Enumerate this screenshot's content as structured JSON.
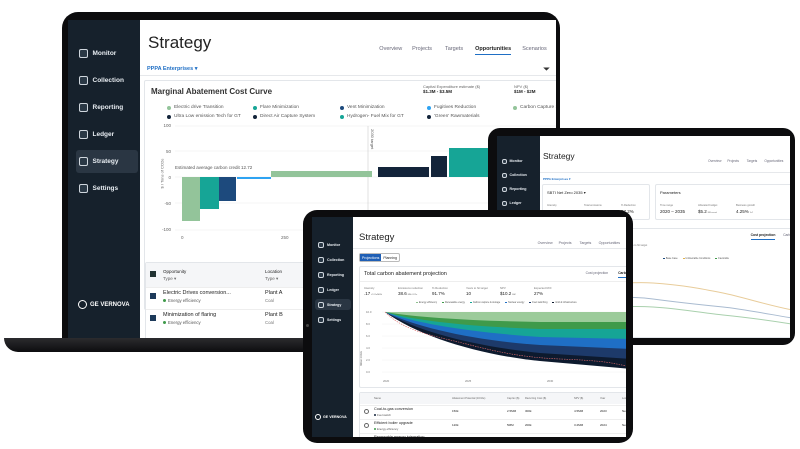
{
  "laptop": {
    "nav": [
      {
        "label": "Monitor",
        "icon": "monitor-icon"
      },
      {
        "label": "Collection",
        "icon": "collection-icon"
      },
      {
        "label": "Reporting",
        "icon": "reporting-icon"
      },
      {
        "label": "Ledger",
        "icon": "ledger-icon"
      },
      {
        "label": "Strategy",
        "icon": "strategy-icon",
        "active": true
      },
      {
        "label": "Settings",
        "icon": "gear-icon"
      }
    ],
    "logo": "GE VERNOVA",
    "title": "Strategy",
    "tabs": [
      "Overview",
      "Projects",
      "Targets",
      "Opportunities",
      "Scenarios"
    ],
    "active_tab": "Opportunities",
    "org": "PPPA Enterprises",
    "card_title": "Marginal Abatement Cost Curve",
    "capex_label": "Capital Expenditure estimate ($)",
    "capex_value": "$1.3M - $3.5M",
    "npv_label": "NPV ($)",
    "npv_value": "$1M - $2M",
    "legend": [
      {
        "label": "Electric drive Transition",
        "color": "#93c49a"
      },
      {
        "label": "Flare Minimization",
        "color": "#16a596"
      },
      {
        "label": "Vent Minimization",
        "color": "#1d4a7d"
      },
      {
        "label": "Fugitives Reduction",
        "color": "#2ea3f2"
      },
      {
        "label": "Carbon Capture S",
        "color": "#93c49a"
      },
      {
        "label": "Ultra Low emission Tech for GT",
        "color": "#13243a"
      },
      {
        "label": "Direct Air Capture System",
        "color": "#13243a"
      },
      {
        "label": "Hydrogen- Fuel Mix for GT",
        "color": "#16a596"
      },
      {
        "label": "'Green' Rawmaterials",
        "color": "#13243a"
      }
    ],
    "y_ticks": [
      "100",
      "50",
      "0",
      "-50",
      "-100"
    ],
    "x_ticks": [
      "0",
      "250"
    ],
    "y_axis_label": "$ / Tons of CO2e",
    "target_label": "2030 target",
    "avg_credit": "Estimated average carbon credit 12.72",
    "table": {
      "col1": "Opportunity",
      "col1_sub": "Type",
      "col2": "Location",
      "col2_sub": "Type",
      "rows": [
        {
          "name": "Electric Drives conversion...",
          "type": "Energy efficiency",
          "loc": "Plant A",
          "loc_type": "Coal"
        },
        {
          "name": "Minimization of flaring",
          "type": "Energy efficiency",
          "loc": "Plant B",
          "loc_type": "Coal"
        }
      ]
    }
  },
  "tablet_right": {
    "nav": [
      "Monitor",
      "Collection",
      "Reporting",
      "Ledger"
    ],
    "title": "Strategy",
    "tabs": [
      "Overview",
      "Projects",
      "Targets",
      "Opportunities"
    ],
    "org": "PPPA Enterprises",
    "scenario": "SBTI Net Zero 2035",
    "metrics": [
      {
        "label": "Intensity",
        "value": "202",
        "unit": "tCO2e/MM"
      },
      {
        "label": "Total emissions",
        "value": "6.9",
        "unit": "MM tCO2"
      },
      {
        "label": "% Reduction",
        "value": "87.2%",
        "unit": ""
      }
    ],
    "params_title": "Parameters",
    "params": [
      {
        "label": "Time range",
        "value": "2020 – 2035",
        "unit": ""
      },
      {
        "label": "Allocated budget",
        "value": "$5.2",
        "unit": "MM annual"
      },
      {
        "label": "Business growth",
        "value": "4.25%",
        "unit": "YoY"
      }
    ],
    "tabs2": [
      "Cost projection",
      "Carbon ab"
    ],
    "metrics2": [
      {
        "label": "Operating expense",
        "value": "5.2",
        "unit": "MM$"
      },
      {
        "label": "Emissions reduction",
        "value": "38.6",
        "unit": "MM tCO2e"
      },
      {
        "label": "Years to hit target",
        "value": "10",
        "unit": ""
      }
    ],
    "legend": [
      {
        "label": "Base Case",
        "color": "#1d4a7d"
      },
      {
        "label": "Unfavorable Conditions",
        "color": "#e0b14a"
      },
      {
        "label": "Favorable",
        "color": "#3f9a4a"
      }
    ]
  },
  "tablet_front": {
    "nav": [
      {
        "label": "Monitor",
        "icon": "monitor-icon"
      },
      {
        "label": "Collection",
        "icon": "collection-icon"
      },
      {
        "label": "Reporting",
        "icon": "reporting-icon"
      },
      {
        "label": "Ledger",
        "icon": "ledger-icon"
      },
      {
        "label": "Strategy",
        "icon": "strategy-icon",
        "active": true
      },
      {
        "label": "Settings",
        "icon": "gear-icon"
      }
    ],
    "logo": "GE VERNOVA",
    "title": "Strategy",
    "tabs": [
      "Overview",
      "Projects",
      "Targets",
      "Opportunities"
    ],
    "toggle": [
      "Projections",
      "Planning"
    ],
    "card_title": "Total carbon abatement projection",
    "tabs2": [
      "Cost projection",
      "Carbon ab"
    ],
    "metrics": [
      {
        "label": "Intensity",
        "value": ".17",
        "unit": "tCO2e/MWh"
      },
      {
        "label": "Emissions reduction",
        "value": "38.6",
        "unit": "MM tCO2e"
      },
      {
        "label": "% Reduction",
        "value": "91.7%",
        "unit": ""
      },
      {
        "label": "Years to hit target",
        "value": "10",
        "unit": ""
      },
      {
        "label": "NPV",
        "value": "$10.2",
        "unit": "MM"
      },
      {
        "label": "Expected ROI",
        "value": "27%",
        "unit": ""
      }
    ],
    "legend": [
      {
        "label": "Energy efficiency",
        "color": "#8fc28f"
      },
      {
        "label": "Renewable energy",
        "color": "#3f9a4a"
      },
      {
        "label": "Carbon capture & storage",
        "color": "#16a596"
      },
      {
        "label": "Nuclear energy",
        "color": "#1f6fc5"
      },
      {
        "label": "Fuel switching",
        "color": "#1d3a6a"
      },
      {
        "label": "Grid & infrastructure",
        "color": "#0d1a2e"
      }
    ],
    "y_ticks": [
      "10.0",
      "8.0",
      "6.0",
      "4.0",
      "2.0",
      "0.0"
    ],
    "x_ticks": [
      "2020",
      "2025",
      "2030"
    ],
    "y_axis_label": "Million tCO2e",
    "table": {
      "headers": [
        "Name",
        "Abatement Potential (tCO2e)",
        "Cap Ex ($)",
        "Recurring Cost ($)",
        "NPV ($)",
        "Year",
        "Loc"
      ],
      "rows": [
        {
          "name": "Coal-to-gas conversion",
          "type": "Fuel switch",
          "type_color": "#13243a",
          "vals": [
            "150k",
            "2.5MM",
            "300k",
            "4.5MM",
            "2023",
            "New"
          ]
        },
        {
          "name": "Efficient boiler upgrade",
          "type": "Energy efficiency",
          "type_color": "#3f9a4a",
          "vals": [
            "120k",
            "5MM",
            "200k",
            "3.2MM",
            "2024",
            "New"
          ]
        },
        {
          "name": "Renewable energy integration",
          "type": "",
          "type_color": "#3f9a4a",
          "vals": [
            "100k",
            "1.8MM",
            "150k",
            "3.6MM",
            "2025",
            "New"
          ]
        }
      ]
    }
  }
}
